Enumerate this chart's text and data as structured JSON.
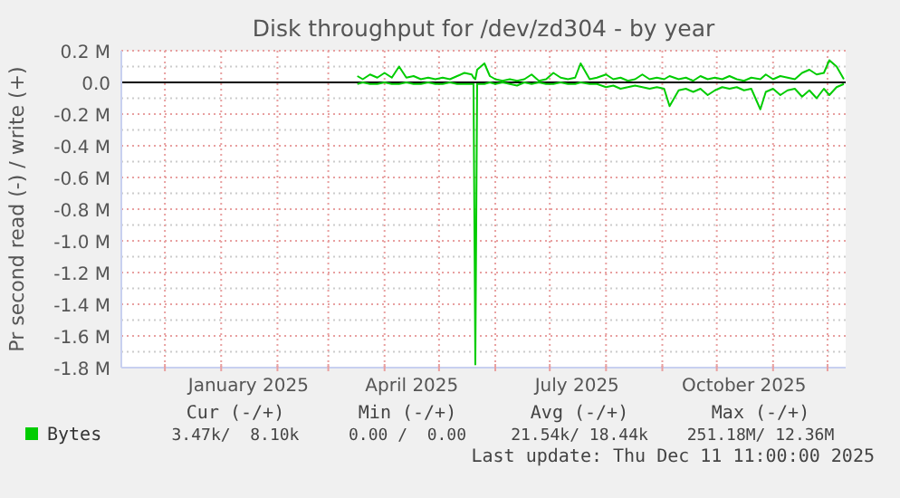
{
  "chart_data": {
    "type": "line",
    "title": "Disk throughput for /dev/zd304 - by year",
    "ylabel": "Pr second read (-) / write (+)",
    "x": [
      "2025-03-17",
      "2025-03-20",
      "2025-03-24",
      "2025-03-28",
      "2025-04-01",
      "2025-04-05",
      "2025-04-09",
      "2025-04-13",
      "2025-04-17",
      "2025-04-21",
      "2025-04-25",
      "2025-04-29",
      "2025-05-03",
      "2025-05-07",
      "2025-05-11",
      "2025-05-15",
      "2025-05-19",
      "2025-05-20",
      "2025-05-21",
      "2025-05-22",
      "2025-05-26",
      "2025-05-29",
      "2025-06-01",
      "2025-06-05",
      "2025-06-09",
      "2025-06-13",
      "2025-06-17",
      "2025-06-21",
      "2025-06-25",
      "2025-06-29",
      "2025-07-03",
      "2025-07-07",
      "2025-07-11",
      "2025-07-15",
      "2025-07-18",
      "2025-07-23",
      "2025-07-27",
      "2025-08-01",
      "2025-08-05",
      "2025-08-09",
      "2025-08-13",
      "2025-08-17",
      "2025-08-21",
      "2025-08-25",
      "2025-08-29",
      "2025-09-02",
      "2025-09-05",
      "2025-09-10",
      "2025-09-14",
      "2025-09-18",
      "2025-09-22",
      "2025-09-26",
      "2025-09-30",
      "2025-10-04",
      "2025-10-08",
      "2025-10-12",
      "2025-10-16",
      "2025-10-20",
      "2025-10-25",
      "2025-10-28",
      "2025-11-01",
      "2025-11-05",
      "2025-11-09",
      "2025-11-13",
      "2025-11-17",
      "2025-11-21",
      "2025-11-25",
      "2025-11-29",
      "2025-12-02",
      "2025-12-06",
      "2025-12-10"
    ],
    "series": [
      {
        "name": "Bytes",
        "color": "#00cc00",
        "values": [
          0.04,
          0.02,
          0.05,
          0.03,
          0.06,
          0.03,
          0.1,
          0.03,
          0.04,
          0.02,
          0.03,
          0.02,
          0.03,
          0.02,
          0.04,
          0.06,
          0.05,
          0.03,
          0.02,
          0.08,
          0.12,
          0.04,
          0.02,
          0.01,
          0.02,
          0.01,
          0.02,
          0.05,
          0.01,
          0.02,
          0.06,
          0.03,
          0.02,
          0.03,
          0.12,
          0.02,
          0.03,
          0.05,
          0.02,
          0.03,
          0.01,
          0.02,
          0.05,
          0.02,
          0.03,
          0.02,
          0.04,
          0.02,
          0.03,
          0.01,
          0.04,
          0.02,
          0.03,
          0.02,
          0.04,
          0.02,
          0.01,
          0.03,
          0.02,
          0.05,
          0.02,
          0.04,
          0.03,
          0.02,
          0.06,
          0.08,
          0.05,
          0.06,
          0.14,
          0.1,
          0.02
        ]
      },
      {
        "color": "#00cc00",
        "values": [
          -0.01,
          0,
          -0.01,
          -0.01,
          0,
          -0.01,
          -0.01,
          0,
          -0.01,
          -0.01,
          0,
          -0.01,
          -0.01,
          0,
          -0.01,
          -0.01,
          -0.01,
          -0.01,
          -1.78,
          -0.01,
          -0.01,
          0,
          -0.01,
          0,
          -0.01,
          -0.02,
          0,
          -0.01,
          0,
          -0.01,
          -0.01,
          0,
          -0.01,
          -0.01,
          0,
          -0.01,
          -0.01,
          -0.03,
          -0.02,
          -0.04,
          -0.03,
          -0.02,
          -0.03,
          -0.04,
          -0.03,
          -0.04,
          -0.15,
          -0.05,
          -0.04,
          -0.06,
          -0.04,
          -0.08,
          -0.05,
          -0.03,
          -0.04,
          -0.03,
          -0.05,
          -0.04,
          -0.17,
          -0.06,
          -0.04,
          -0.08,
          -0.05,
          -0.04,
          -0.09,
          -0.05,
          -0.1,
          -0.04,
          -0.08,
          -0.03,
          -0.01
        ]
      }
    ],
    "xlim": [
      "2024-11-07",
      "2025-12-11"
    ],
    "xticks": [
      {
        "value": "2024-12-01",
        "label": null
      },
      {
        "value": "2025-01-01",
        "label": null
      },
      {
        "value": "2025-01-16",
        "label": "January 2025"
      },
      {
        "value": "2025-02-01",
        "label": null
      },
      {
        "value": "2025-03-01",
        "label": null
      },
      {
        "value": "2025-04-01",
        "label": null
      },
      {
        "value": "2025-04-16",
        "label": "April 2025"
      },
      {
        "value": "2025-05-01",
        "label": null
      },
      {
        "value": "2025-06-01",
        "label": null
      },
      {
        "value": "2025-07-01",
        "label": null
      },
      {
        "value": "2025-07-16",
        "label": "July 2025"
      },
      {
        "value": "2025-08-01",
        "label": null
      },
      {
        "value": "2025-09-01",
        "label": null
      },
      {
        "value": "2025-10-01",
        "label": null
      },
      {
        "value": "2025-10-16",
        "label": "October 2025"
      },
      {
        "value": "2025-11-01",
        "label": null
      },
      {
        "value": "2025-12-01",
        "label": null
      }
    ],
    "ylim": [
      -1.8,
      0.2
    ],
    "yticks": [
      {
        "value": 0.2,
        "label": "0.2 M"
      },
      {
        "value": 0.0,
        "label": "0.0"
      },
      {
        "value": -0.2,
        "label": "-0.2 M"
      },
      {
        "value": -0.4,
        "label": "-0.4 M"
      },
      {
        "value": -0.6,
        "label": "-0.6 M"
      },
      {
        "value": -0.8,
        "label": "-0.8 M"
      },
      {
        "value": -1.0,
        "label": "-1.0 M"
      },
      {
        "value": -1.2,
        "label": "-1.2 M"
      },
      {
        "value": -1.4,
        "label": "-1.4 M"
      },
      {
        "value": -1.6,
        "label": "-1.6 M"
      },
      {
        "value": -1.8,
        "label": "-1.8 M"
      }
    ],
    "ref_lines": [
      {
        "axis": "y",
        "value": 0,
        "color": "#000000"
      }
    ],
    "grid": true,
    "legend": "bottom left",
    "line_style": "solid",
    "annotations": [
      "Cur (-/+)",
      "Min (-/+)",
      "Avg (-/+)",
      "Max (-/+)",
      "3.47k/  8.10k",
      "0.00 /  0.00",
      "21.54k/ 18.44k",
      "251.18M/ 12.36M",
      "Last update: Thu Dec 11 11:00:00 2025"
    ]
  }
}
